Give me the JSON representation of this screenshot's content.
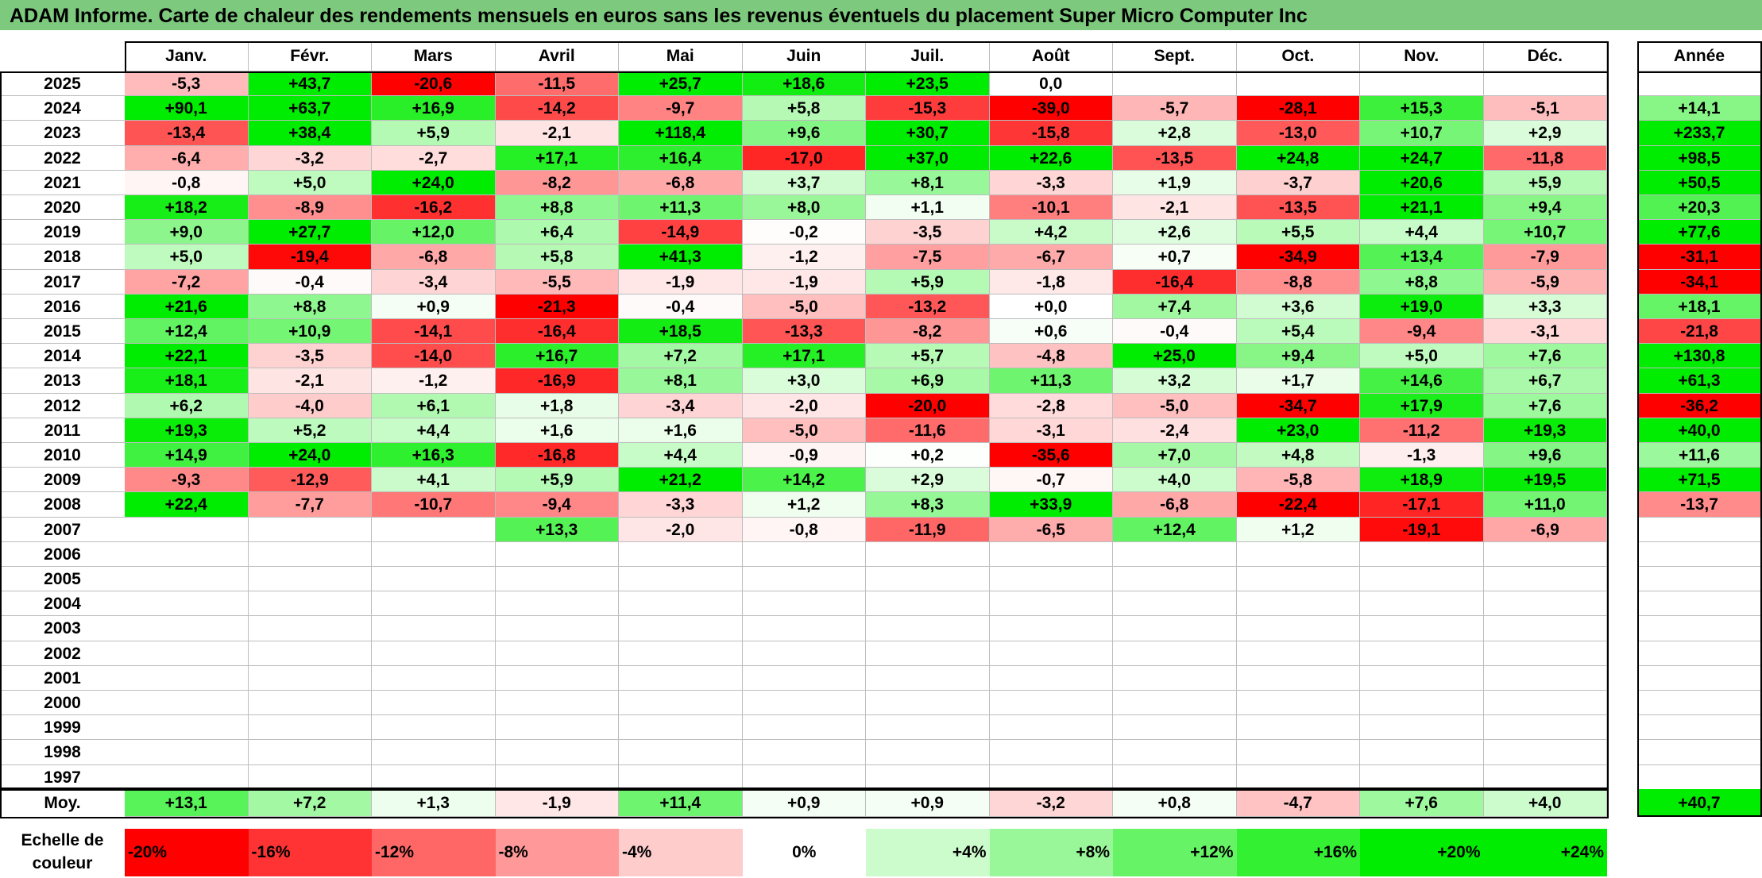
{
  "title": "ADAM Informe. Carte de chaleur des rendements mensuels en euros sans les revenus éventuels du placement Super Micro Computer Inc",
  "colors": {
    "title_bg": "#7dc97d",
    "positive_max": "#00ee00",
    "negative_max": "#ff0000",
    "neutral": "#ffffff"
  },
  "chart_data": {
    "type": "heatmap",
    "title": "ADAM Informe. Carte de chaleur des rendements mensuels en euros sans les revenus éventuels du placement Super Micro Computer Inc",
    "months": [
      "Janv.",
      "Févr.",
      "Mars",
      "Avril",
      "Mai",
      "Juin",
      "Juil.",
      "Août",
      "Sept.",
      "Oct.",
      "Nov.",
      "Déc."
    ],
    "year_header": "Année",
    "avg_label": "Moy.",
    "rows": [
      {
        "year": "2025",
        "values": [
          "-5,3",
          "+43,7",
          "-20,6",
          "-11,5",
          "+25,7",
          "+18,6",
          "+23,5",
          "0,0",
          "",
          "",
          "",
          ""
        ],
        "annual": ""
      },
      {
        "year": "2024",
        "values": [
          "+90,1",
          "+63,7",
          "+16,9",
          "-14,2",
          "-9,7",
          "+5,8",
          "-15,3",
          "-39,0",
          "-5,7",
          "-28,1",
          "+15,3",
          "-5,1"
        ],
        "annual": "+14,1"
      },
      {
        "year": "2023",
        "values": [
          "-13,4",
          "+38,4",
          "+5,9",
          "-2,1",
          "+118,4",
          "+9,6",
          "+30,7",
          "-15,8",
          "+2,8",
          "-13,0",
          "+10,7",
          "+2,9"
        ],
        "annual": "+233,7"
      },
      {
        "year": "2022",
        "values": [
          "-6,4",
          "-3,2",
          "-2,7",
          "+17,1",
          "+16,4",
          "-17,0",
          "+37,0",
          "+22,6",
          "-13,5",
          "+24,8",
          "+24,7",
          "-11,8"
        ],
        "annual": "+98,5"
      },
      {
        "year": "2021",
        "values": [
          "-0,8",
          "+5,0",
          "+24,0",
          "-8,2",
          "-6,8",
          "+3,7",
          "+8,1",
          "-3,3",
          "+1,9",
          "-3,7",
          "+20,6",
          "+5,9"
        ],
        "annual": "+50,5"
      },
      {
        "year": "2020",
        "values": [
          "+18,2",
          "-8,9",
          "-16,2",
          "+8,8",
          "+11,3",
          "+8,0",
          "+1,1",
          "-10,1",
          "-2,1",
          "-13,5",
          "+21,1",
          "+9,4"
        ],
        "annual": "+20,3"
      },
      {
        "year": "2019",
        "values": [
          "+9,0",
          "+27,7",
          "+12,0",
          "+6,4",
          "-14,9",
          "-0,2",
          "-3,5",
          "+4,2",
          "+2,6",
          "+5,5",
          "+4,4",
          "+10,7"
        ],
        "annual": "+77,6"
      },
      {
        "year": "2018",
        "values": [
          "+5,0",
          "-19,4",
          "-6,8",
          "+5,8",
          "+41,3",
          "-1,2",
          "-7,5",
          "-6,7",
          "+0,7",
          "-34,9",
          "+13,4",
          "-7,9"
        ],
        "annual": "-31,1"
      },
      {
        "year": "2017",
        "values": [
          "-7,2",
          "-0,4",
          "-3,4",
          "-5,5",
          "-1,9",
          "-1,9",
          "+5,9",
          "-1,8",
          "-16,4",
          "-8,8",
          "+8,8",
          "-5,9"
        ],
        "annual": "-34,1"
      },
      {
        "year": "2016",
        "values": [
          "+21,6",
          "+8,8",
          "+0,9",
          "-21,3",
          "-0,4",
          "-5,0",
          "-13,2",
          "+0,0",
          "+7,4",
          "+3,6",
          "+19,0",
          "+3,3"
        ],
        "annual": "+18,1"
      },
      {
        "year": "2015",
        "values": [
          "+12,4",
          "+10,9",
          "-14,1",
          "-16,4",
          "+18,5",
          "-13,3",
          "-8,2",
          "+0,6",
          "-0,4",
          "+5,4",
          "-9,4",
          "-3,1"
        ],
        "annual": "-21,8"
      },
      {
        "year": "2014",
        "values": [
          "+22,1",
          "-3,5",
          "-14,0",
          "+16,7",
          "+7,2",
          "+17,1",
          "+5,7",
          "-4,8",
          "+25,0",
          "+9,4",
          "+5,0",
          "+7,6"
        ],
        "annual": "+130,8"
      },
      {
        "year": "2013",
        "values": [
          "+18,1",
          "-2,1",
          "-1,2",
          "-16,9",
          "+8,1",
          "+3,0",
          "+6,9",
          "+11,3",
          "+3,2",
          "+1,7",
          "+14,6",
          "+6,7"
        ],
        "annual": "+61,3"
      },
      {
        "year": "2012",
        "values": [
          "+6,2",
          "-4,0",
          "+6,1",
          "+1,8",
          "-3,4",
          "-2,0",
          "-20,0",
          "-2,8",
          "-5,0",
          "-34,7",
          "+17,9",
          "+7,6"
        ],
        "annual": "-36,2"
      },
      {
        "year": "2011",
        "values": [
          "+19,3",
          "+5,2",
          "+4,4",
          "+1,6",
          "+1,6",
          "-5,0",
          "-11,6",
          "-3,1",
          "-2,4",
          "+23,0",
          "-11,2",
          "+19,3"
        ],
        "annual": "+40,0"
      },
      {
        "year": "2010",
        "values": [
          "+14,9",
          "+24,0",
          "+16,3",
          "-16,8",
          "+4,4",
          "-0,9",
          "+0,2",
          "-35,6",
          "+7,0",
          "+4,8",
          "-1,3",
          "+9,6"
        ],
        "annual": "+11,6"
      },
      {
        "year": "2009",
        "values": [
          "-9,3",
          "-12,9",
          "+4,1",
          "+5,9",
          "+21,2",
          "+14,2",
          "+2,9",
          "-0,7",
          "+4,0",
          "-5,8",
          "+18,9",
          "+19,5"
        ],
        "annual": "+71,5"
      },
      {
        "year": "2008",
        "values": [
          "+22,4",
          "-7,7",
          "-10,7",
          "-9,4",
          "-3,3",
          "+1,2",
          "+8,3",
          "+33,9",
          "-6,8",
          "-22,4",
          "-17,1",
          "+11,0"
        ],
        "annual": "-13,7"
      },
      {
        "year": "2007",
        "values": [
          "",
          "",
          "",
          "+13,3",
          "-2,0",
          "-0,8",
          "-11,9",
          "-6,5",
          "+12,4",
          "+1,2",
          "-19,1",
          "-6,9"
        ],
        "annual": ""
      },
      {
        "year": "2006",
        "values": [
          "",
          "",
          "",
          "",
          "",
          "",
          "",
          "",
          "",
          "",
          "",
          ""
        ],
        "annual": ""
      },
      {
        "year": "2005",
        "values": [
          "",
          "",
          "",
          "",
          "",
          "",
          "",
          "",
          "",
          "",
          "",
          ""
        ],
        "annual": ""
      },
      {
        "year": "2004",
        "values": [
          "",
          "",
          "",
          "",
          "",
          "",
          "",
          "",
          "",
          "",
          "",
          ""
        ],
        "annual": ""
      },
      {
        "year": "2003",
        "values": [
          "",
          "",
          "",
          "",
          "",
          "",
          "",
          "",
          "",
          "",
          "",
          ""
        ],
        "annual": ""
      },
      {
        "year": "2002",
        "values": [
          "",
          "",
          "",
          "",
          "",
          "",
          "",
          "",
          "",
          "",
          "",
          ""
        ],
        "annual": ""
      },
      {
        "year": "2001",
        "values": [
          "",
          "",
          "",
          "",
          "",
          "",
          "",
          "",
          "",
          "",
          "",
          ""
        ],
        "annual": ""
      },
      {
        "year": "2000",
        "values": [
          "",
          "",
          "",
          "",
          "",
          "",
          "",
          "",
          "",
          "",
          "",
          ""
        ],
        "annual": ""
      },
      {
        "year": "1999",
        "values": [
          "",
          "",
          "",
          "",
          "",
          "",
          "",
          "",
          "",
          "",
          "",
          ""
        ],
        "annual": ""
      },
      {
        "year": "1998",
        "values": [
          "",
          "",
          "",
          "",
          "",
          "",
          "",
          "",
          "",
          "",
          "",
          ""
        ],
        "annual": ""
      },
      {
        "year": "1997",
        "values": [
          "",
          "",
          "",
          "",
          "",
          "",
          "",
          "",
          "",
          "",
          "",
          ""
        ],
        "annual": ""
      }
    ],
    "averages": [
      "+13,1",
      "+7,2",
      "+1,3",
      "-1,9",
      "+11,4",
      "+0,9",
      "+0,9",
      "-3,2",
      "+0,8",
      "-4,7",
      "+7,6",
      "+4,0"
    ],
    "average_annual": "+40,7",
    "scale_label": "Echelle de couleur",
    "scale_label_lines": [
      "Echelle de",
      "couleur"
    ],
    "scale": [
      "-20%",
      "-16%",
      "-12%",
      "-8%",
      "-4%",
      "0%",
      "+4%",
      "+8%",
      "+12%",
      "+16%",
      "+20%",
      "+24%"
    ],
    "scale_values": [
      -20,
      -16,
      -12,
      -8,
      -4,
      0,
      4,
      8,
      12,
      16,
      20,
      24
    ]
  }
}
